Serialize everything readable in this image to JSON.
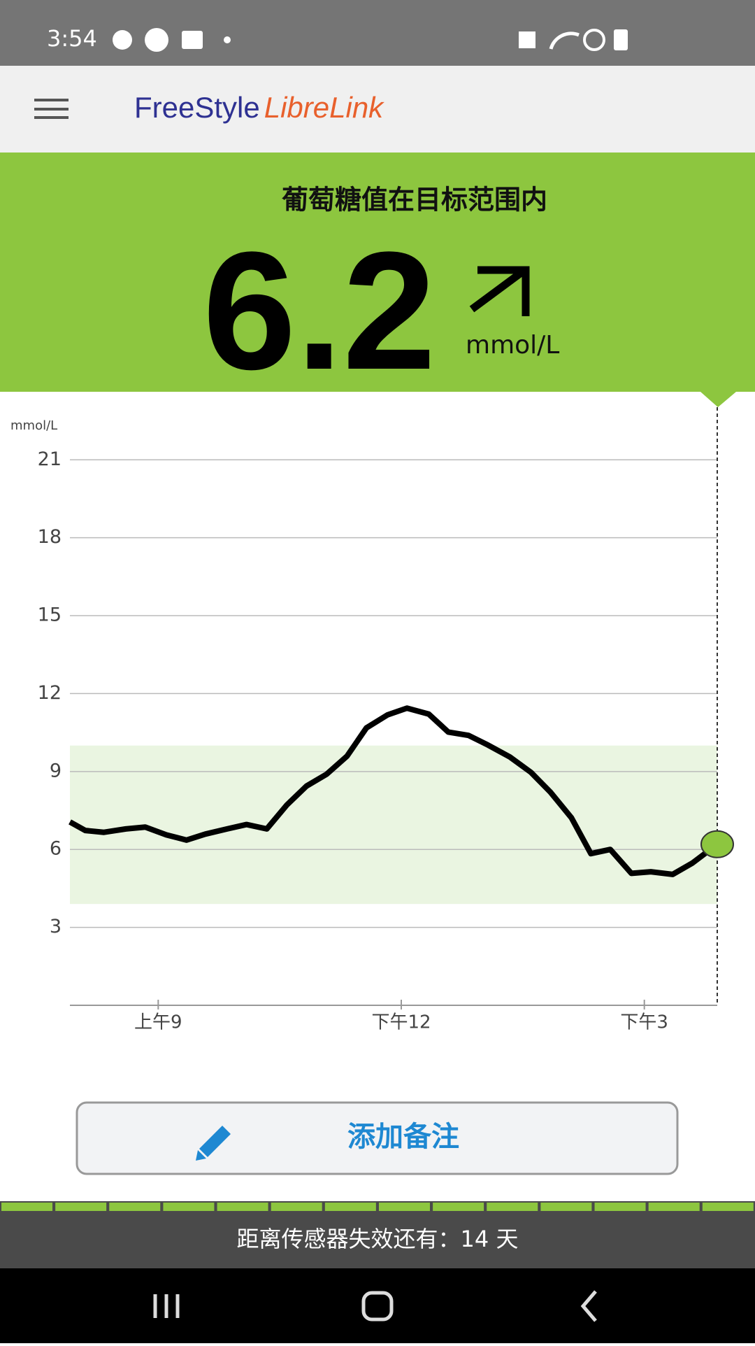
{
  "status_bar": {
    "time": "3:54"
  },
  "header": {
    "logo_part1": "FreeStyle",
    "logo_part2": "LibreLink"
  },
  "banner": {
    "status": "葡萄糖值在目标范围内",
    "value": "6.2",
    "unit": "mmol/L"
  },
  "chart_data": {
    "type": "line",
    "y_label": "mmol/L",
    "color": "#000000",
    "marker_color": "#8dc63f",
    "target_range": [
      3.9,
      10
    ],
    "target_color": "#eaf5e1",
    "x": [
      7.91,
      8.1,
      8.33,
      8.6,
      8.84,
      9.1,
      9.35,
      9.58,
      9.85,
      10.09,
      10.34,
      10.59,
      10.83,
      11.08,
      11.33,
      11.57,
      11.83,
      12.07,
      12.34,
      12.58,
      12.83,
      13.07,
      13.34,
      13.6,
      13.84,
      14.1,
      14.34,
      14.58,
      14.84,
      15.08,
      15.35,
      15.59,
      15.9
    ],
    "values": [
      7.06,
      6.73,
      6.66,
      6.79,
      6.86,
      6.56,
      6.36,
      6.59,
      6.79,
      6.96,
      6.79,
      7.72,
      8.44,
      8.9,
      9.59,
      10.68,
      11.18,
      11.44,
      11.21,
      10.52,
      10.39,
      10.02,
      9.56,
      8.97,
      8.21,
      7.22,
      5.84,
      6.0,
      5.08,
      5.14,
      5.04,
      5.47,
      6.2
    ],
    "xlim": [
      7.91,
      15.9
    ],
    "xticks": [
      {
        "value": 9,
        "label": "上午9"
      },
      {
        "value": 12,
        "label": "下午12"
      },
      {
        "value": 15,
        "label": "下午3"
      }
    ],
    "ylim": [
      0,
      23
    ],
    "yticks": [
      3,
      6,
      9,
      12,
      15,
      18,
      21
    ],
    "grid": true
  },
  "button": {
    "label": "添加备注"
  },
  "footer": {
    "text": "距离传感器失效还有：14 天"
  }
}
